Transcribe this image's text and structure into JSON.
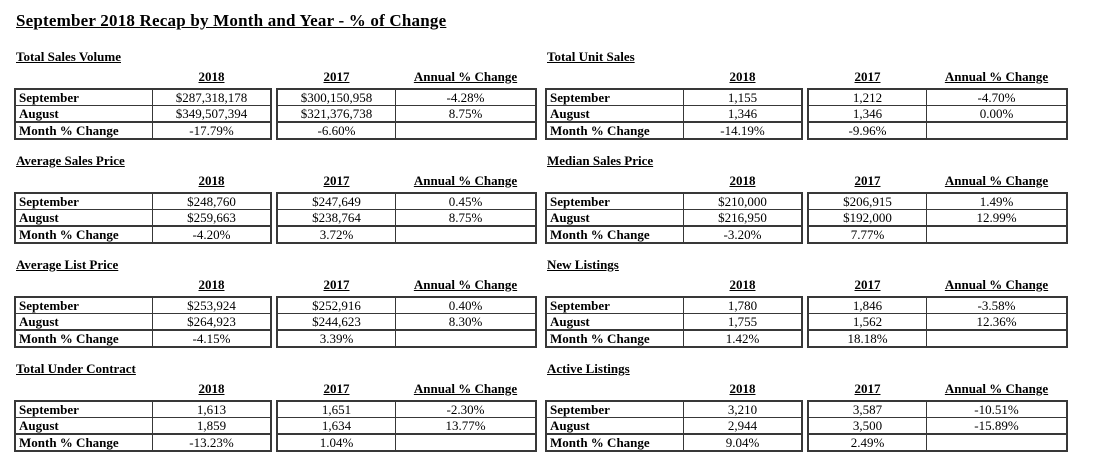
{
  "page": {
    "title": "September 2018 Recap by Month and Year - % of Change"
  },
  "col_headers": [
    "2018",
    "2017",
    "Annual % Change"
  ],
  "colors": {
    "background": "#ffffff",
    "text": "#000000",
    "table_border": "#383838"
  },
  "sections": [
    {
      "heading": "Total Sales Volume",
      "rows": [
        {
          "label": "September",
          "cells": [
            "$287,318,178",
            "$300,150,958",
            "-4.28%"
          ]
        },
        {
          "label": "August",
          "cells": [
            "$349,507,394",
            "$321,376,738",
            "8.75%"
          ]
        },
        {
          "label": "Month % Change",
          "cells": [
            "-17.79%",
            "-6.60%",
            ""
          ]
        }
      ]
    },
    {
      "heading": "Total Unit Sales",
      "rows": [
        {
          "label": "September",
          "cells": [
            "1,155",
            "1,212",
            "-4.70%"
          ]
        },
        {
          "label": "August",
          "cells": [
            "1,346",
            "1,346",
            "0.00%"
          ]
        },
        {
          "label": "Month % Change",
          "cells": [
            "-14.19%",
            "-9.96%",
            ""
          ]
        }
      ]
    },
    {
      "heading": "Average Sales Price",
      "rows": [
        {
          "label": "September",
          "cells": [
            "$248,760",
            "$247,649",
            "0.45%"
          ]
        },
        {
          "label": "August",
          "cells": [
            "$259,663",
            "$238,764",
            "8.75%"
          ]
        },
        {
          "label": "Month % Change",
          "cells": [
            "-4.20%",
            "3.72%",
            ""
          ]
        }
      ]
    },
    {
      "heading": "Median Sales Price",
      "rows": [
        {
          "label": "September",
          "cells": [
            "$210,000",
            "$206,915",
            "1.49%"
          ]
        },
        {
          "label": "August",
          "cells": [
            "$216,950",
            "$192,000",
            "12.99%"
          ]
        },
        {
          "label": "Month % Change",
          "cells": [
            "-3.20%",
            "7.77%",
            ""
          ]
        }
      ]
    },
    {
      "heading": "Average List Price",
      "rows": [
        {
          "label": "September",
          "cells": [
            "$253,924",
            "$252,916",
            "0.40%"
          ]
        },
        {
          "label": "August",
          "cells": [
            "$264,923",
            "$244,623",
            "8.30%"
          ]
        },
        {
          "label": "Month % Change",
          "cells": [
            "-4.15%",
            "3.39%",
            ""
          ]
        }
      ]
    },
    {
      "heading": "New Listings",
      "rows": [
        {
          "label": "September",
          "cells": [
            "1,780",
            "1,846",
            "-3.58%"
          ]
        },
        {
          "label": "August",
          "cells": [
            "1,755",
            "1,562",
            "12.36%"
          ]
        },
        {
          "label": "Month % Change",
          "cells": [
            "1.42%",
            "18.18%",
            ""
          ]
        }
      ]
    },
    {
      "heading": "Total Under Contract",
      "rows": [
        {
          "label": "September",
          "cells": [
            "1,613",
            "1,651",
            "-2.30%"
          ]
        },
        {
          "label": "August",
          "cells": [
            "1,859",
            "1,634",
            "13.77%"
          ]
        },
        {
          "label": "Month % Change",
          "cells": [
            "-13.23%",
            "1.04%",
            ""
          ]
        }
      ]
    },
    {
      "heading": "Active Listings",
      "rows": [
        {
          "label": "September",
          "cells": [
            "3,210",
            "3,587",
            "-10.51%"
          ]
        },
        {
          "label": "August",
          "cells": [
            "2,944",
            "3,500",
            "-15.89%"
          ]
        },
        {
          "label": "Month % Change",
          "cells": [
            "9.04%",
            "2.49%",
            ""
          ]
        }
      ]
    }
  ]
}
